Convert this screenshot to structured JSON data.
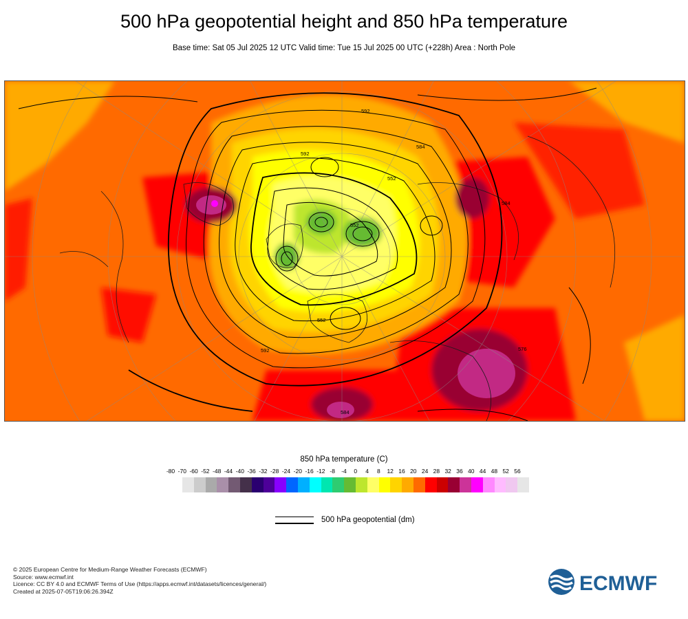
{
  "title": "500 hPa geopotential height and 850 hPa temperature",
  "subtitle": "Base time: Sat 05 Jul 2025 12 UTC Valid time: Tue 15 Jul 2025 00 UTC (+228h) Area : North Pole",
  "legend": {
    "temperature_title": "850 hPa temperature (C)",
    "temperature_ticks": [
      "-80",
      "-70",
      "-60",
      "-52",
      "-48",
      "-44",
      "-40",
      "-36",
      "-32",
      "-28",
      "-24",
      "-20",
      "-16",
      "-12",
      "-8",
      "-4",
      "0",
      "4",
      "8",
      "12",
      "16",
      "20",
      "24",
      "28",
      "32",
      "36",
      "40",
      "44",
      "48",
      "52",
      "56"
    ],
    "temperature_colors": [
      "#e6e6e6",
      "#cccccc",
      "#aaaaaa",
      "#a98fa9",
      "#735a73",
      "#44304a",
      "#2a0070",
      "#4d0099",
      "#8800ff",
      "#0066ff",
      "#00b0ff",
      "#00ffff",
      "#00e6b0",
      "#2ecc71",
      "#66bb33",
      "#bde62e",
      "#ffff66",
      "#ffff00",
      "#ffd400",
      "#ffaa00",
      "#ff6a00",
      "#ff0000",
      "#cc0000",
      "#990033",
      "#cc3399",
      "#ff00ff",
      "#ff88ff",
      "#ffbbff",
      "#f0c8f0",
      "#e6e6e6"
    ],
    "geopotential_label": "500 hPa geopotential (dm)"
  },
  "map": {
    "contour_labels": [
      "592",
      "592",
      "592",
      "552",
      "552",
      "552",
      "584",
      "584",
      "584",
      "576"
    ]
  },
  "footer": {
    "copyright": "© 2025 European Centre for Medium-Range Weather Forecasts (ECMWF)",
    "source": "Source: www.ecmwf.int",
    "licence": "Licence: CC BY 4.0 and ECMWF Terms of Use (https://apps.ecmwf.int/datasets/licences/general/)",
    "created": "Created at 2025-07-05T19:06:26.394Z"
  },
  "logo_text": "ECMWF"
}
